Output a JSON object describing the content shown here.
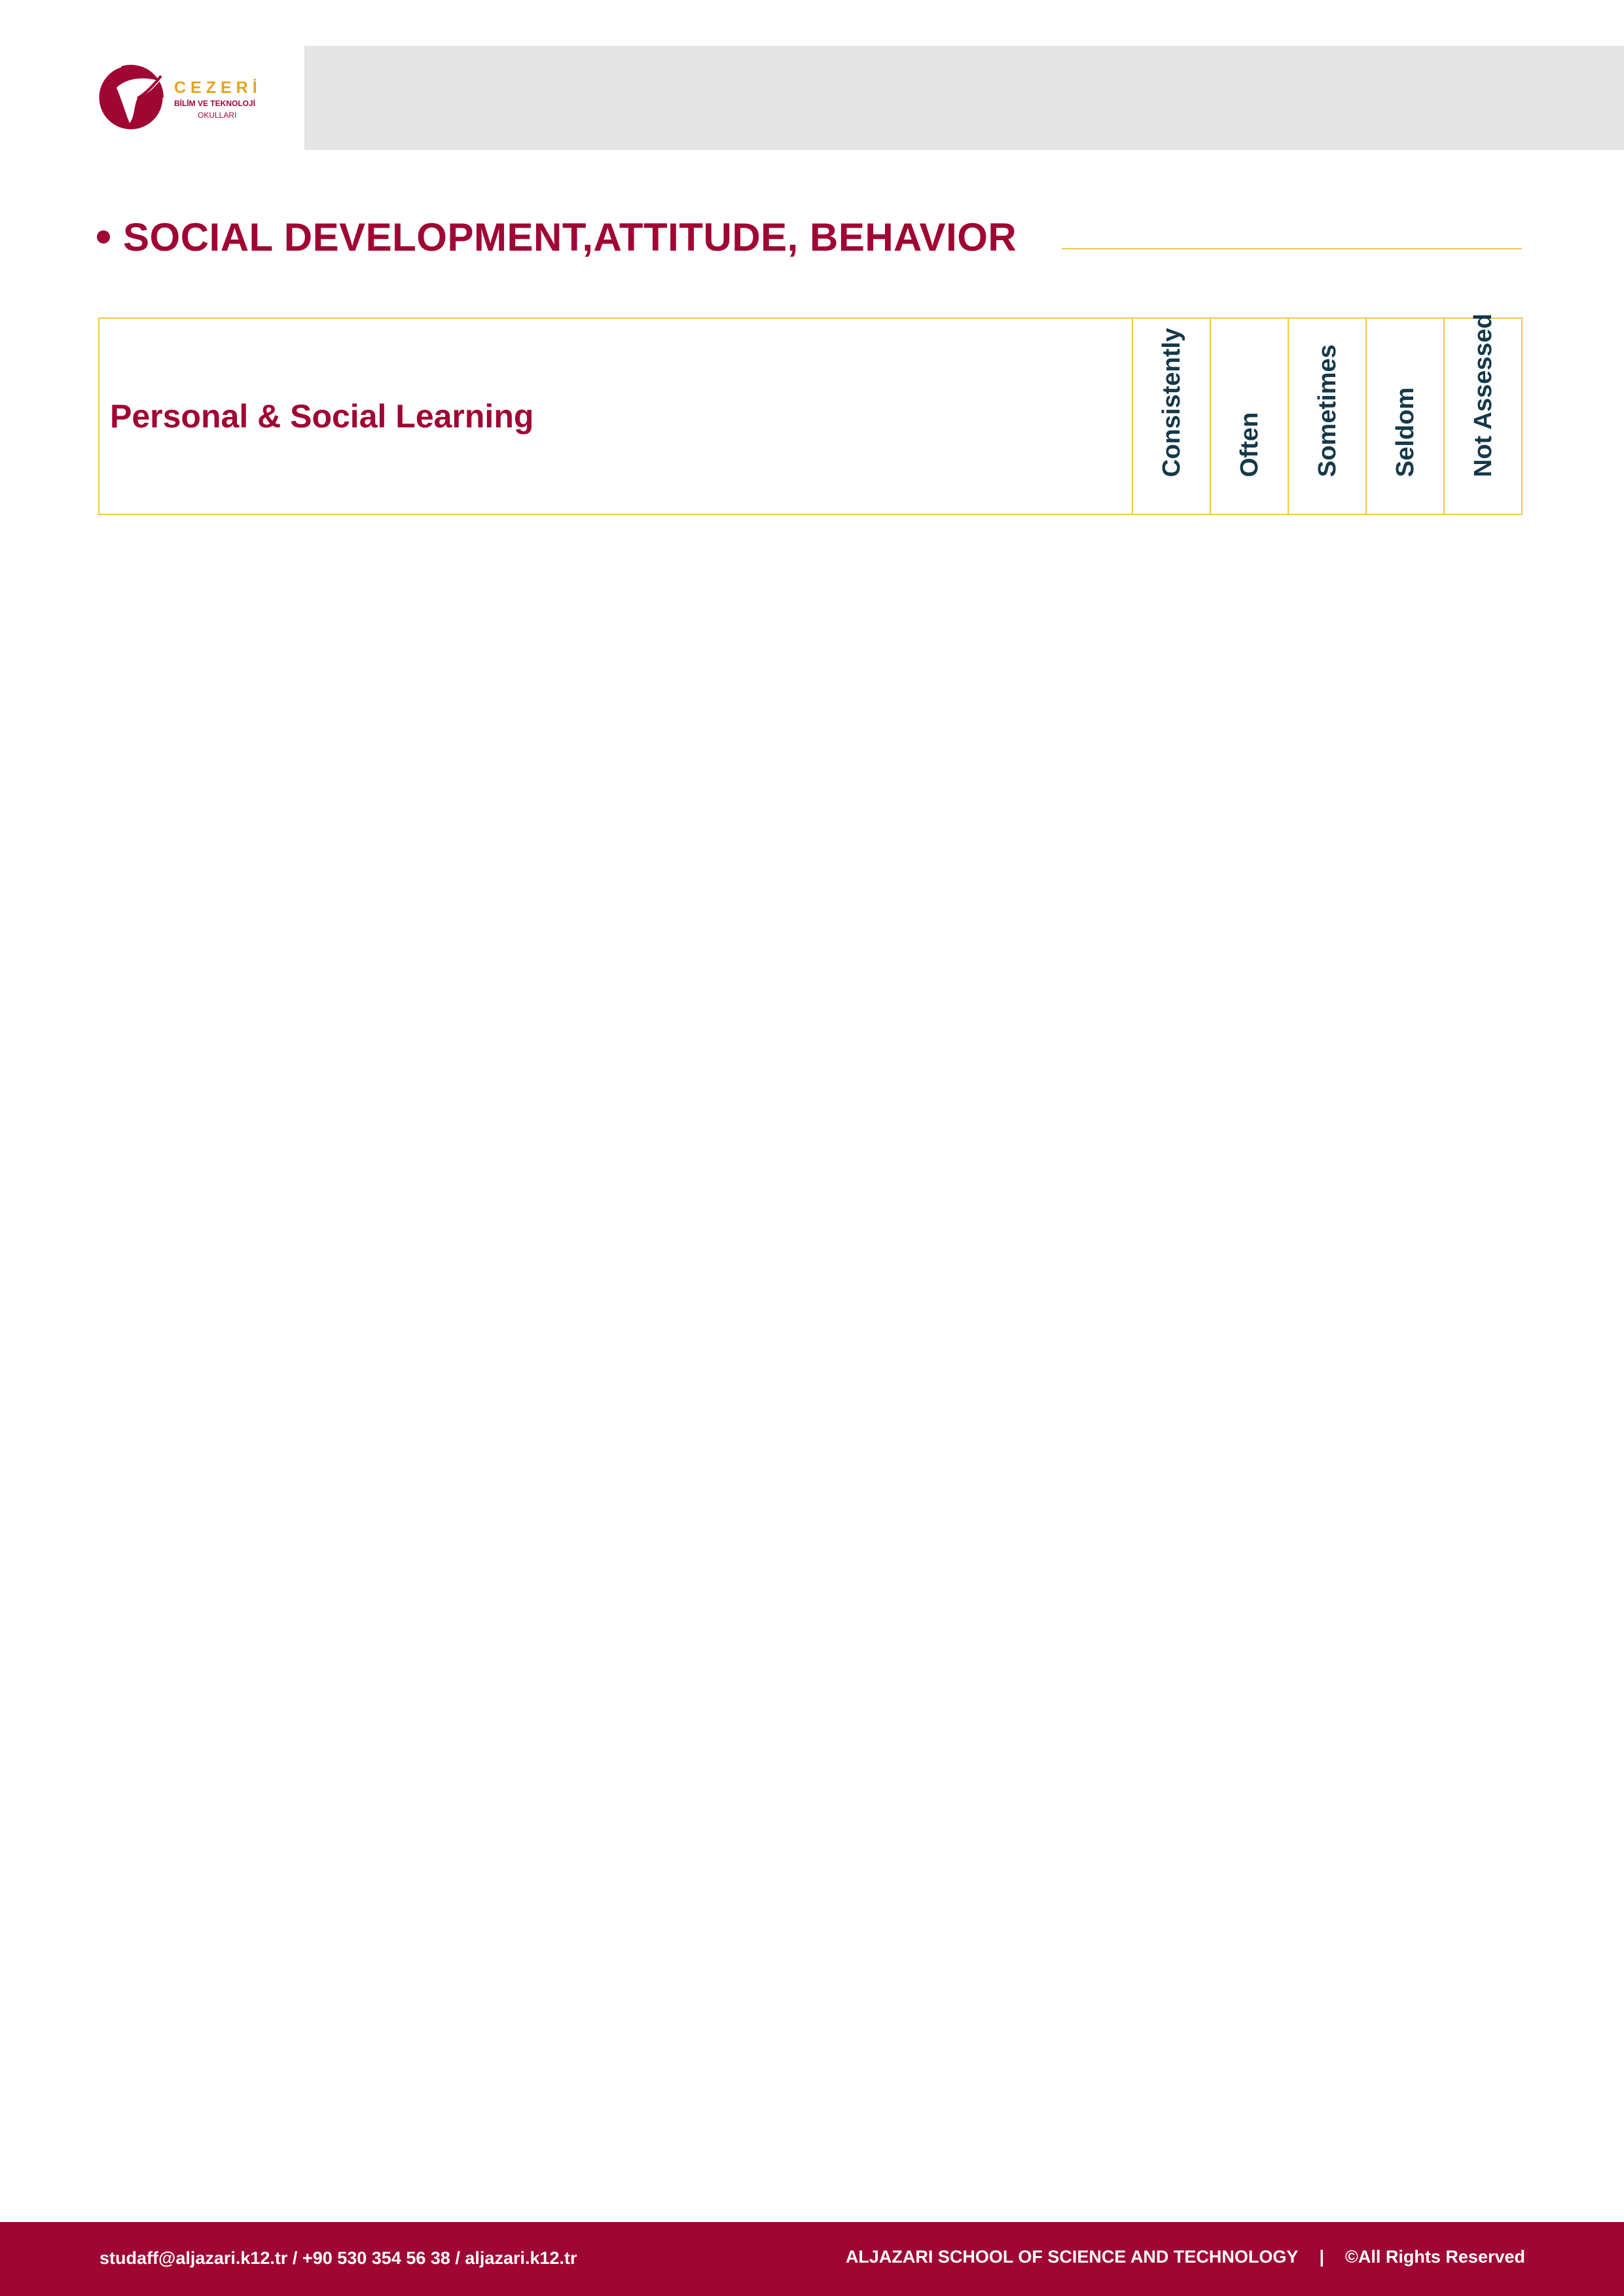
{
  "logo": {
    "brand": "CEZERİ",
    "line2": "BİLİM VE TEKNOLOJİ",
    "line3": "OKULLARI",
    "colors": {
      "primary": "#a00633",
      "accent": "#e8a317"
    }
  },
  "section": {
    "title": "SOCIAL DEVELOPMENT,ATTITUDE, BEHAVIOR"
  },
  "table": {
    "category": "Personal & Social Learning",
    "columns": [
      "Consistently",
      "Often",
      "Sometimes",
      "Seldom",
      "Not Assessed"
    ]
  },
  "footer": {
    "contact": "studaff@aljazari.k12.tr / +90 530 354 56 38 / aljazari.k12.tr",
    "school": "ALJAZARI SCHOOL OF SCIENCE AND TECHNOLOGY",
    "separator": "|",
    "rights": "©All Rights Reserved"
  },
  "colors": {
    "maroon": "#a00633",
    "gold": "#f3c64a",
    "navy": "#15384a",
    "band_gray": "#e4e4e4"
  }
}
